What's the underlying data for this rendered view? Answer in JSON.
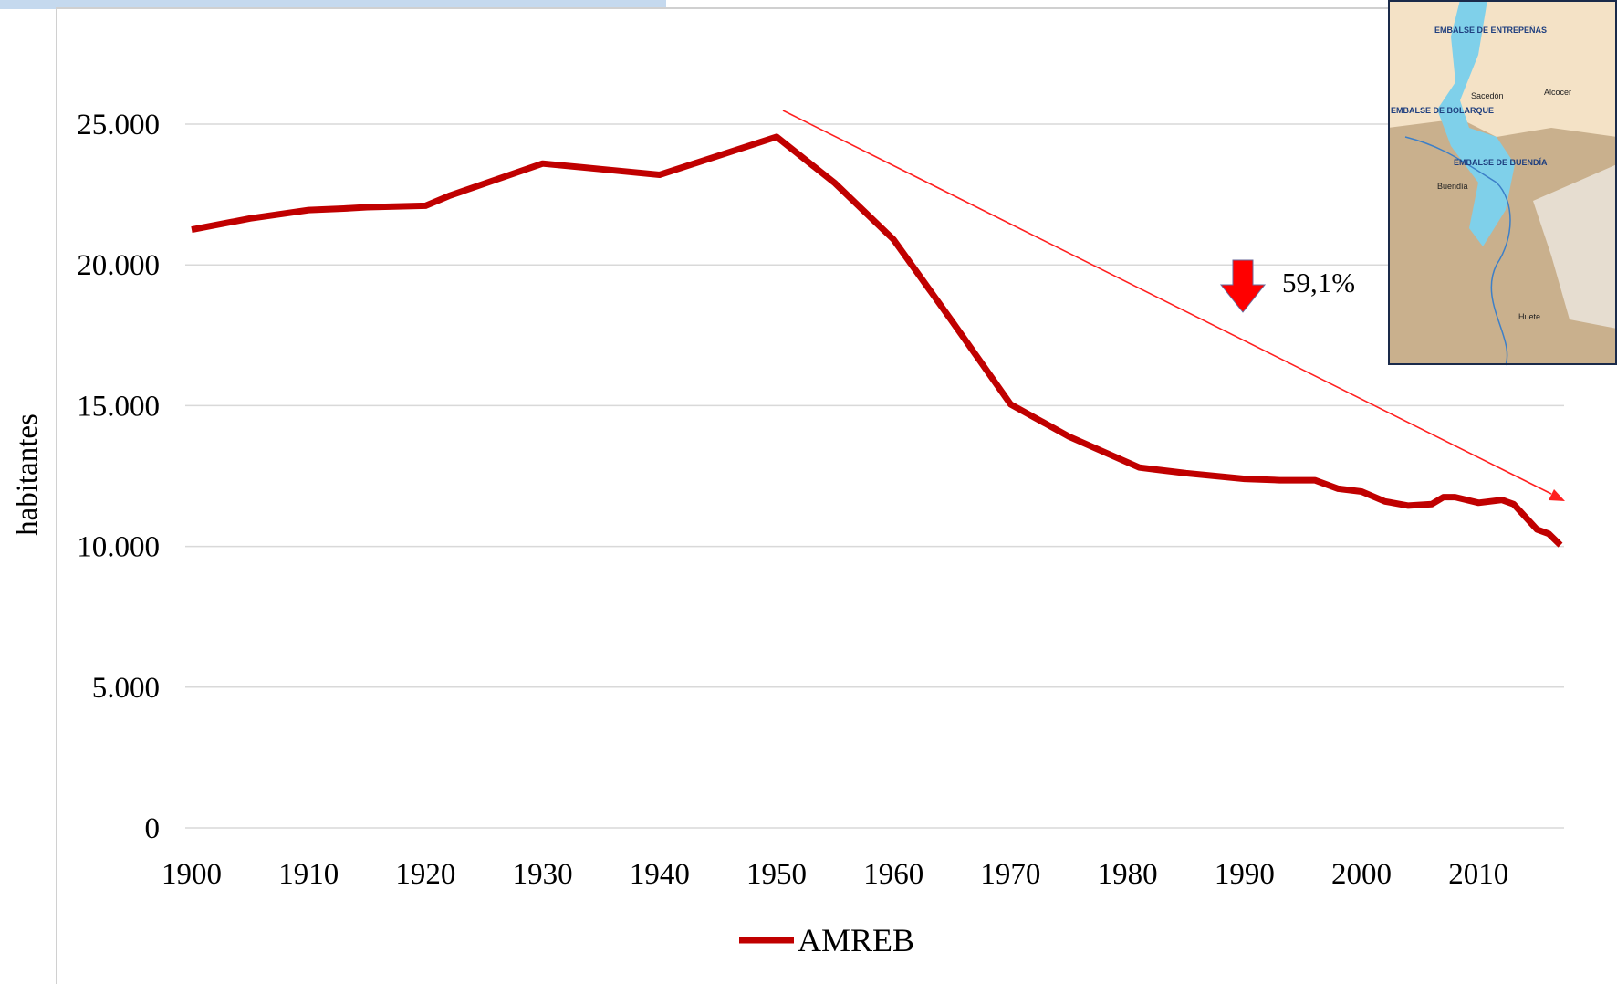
{
  "chart_data": {
    "type": "line",
    "y_label": "habitantes",
    "x": [
      1900,
      1905,
      1910,
      1913,
      1915,
      1920,
      1922,
      1930,
      1935,
      1940,
      1950,
      1955,
      1960,
      1965,
      1970,
      1975,
      1981,
      1985,
      1990,
      1993,
      1996,
      1998,
      2000,
      2002,
      2004,
      2006,
      2007,
      2008,
      2010,
      2012,
      2013,
      2015,
      2016,
      2017
    ],
    "series": [
      {
        "name": "AMREB",
        "color": "#c00000",
        "values": [
          21250,
          21650,
          21950,
          22000,
          22050,
          22100,
          22450,
          23600,
          23400,
          23200,
          24550,
          22900,
          20900,
          18000,
          15050,
          13900,
          12800,
          12600,
          12400,
          12350,
          12350,
          12050,
          11950,
          11600,
          11450,
          11500,
          11750,
          11750,
          11550,
          11650,
          11500,
          10600,
          10450,
          10050
        ]
      }
    ],
    "xlim": [
      1900,
      2017
    ],
    "ylim": [
      0,
      25000
    ],
    "xticks": [
      1900,
      1910,
      1920,
      1930,
      1940,
      1950,
      1960,
      1970,
      1980,
      1990,
      2000,
      2010
    ],
    "yticks": [
      0,
      {
        "value": 5000,
        "label": "5.000"
      },
      {
        "value": 10000,
        "label": "10.000"
      },
      {
        "value": 15000,
        "label": "15.000"
      },
      {
        "value": 20000,
        "label": "20.000"
      },
      {
        "value": 25000,
        "label": "25.000"
      }
    ],
    "grid": true,
    "annotation": "59,1%"
  },
  "map": {
    "labels": [
      "EMBALSE DE ENTREPEÑAS",
      "EMBALSE DE BOLARQUE",
      "EMBALSE DE BUENDÍA",
      "Sacedón",
      "Alcocer",
      "Buendía",
      "Huete"
    ]
  }
}
